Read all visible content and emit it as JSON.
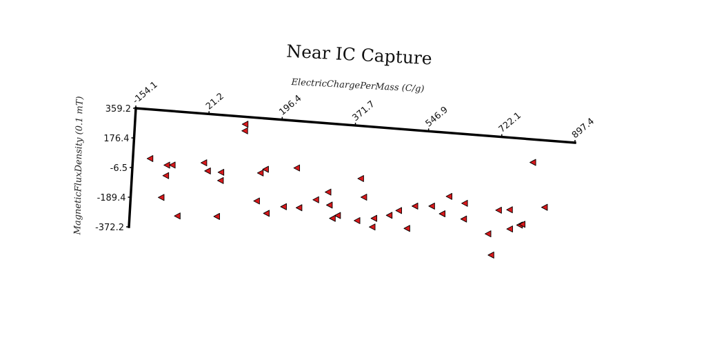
{
  "chart_data": {
    "type": "scatter",
    "title": "Near IC Capture",
    "xlabel": "ElectricChargePerMass (C/g)",
    "ylabel": "MagneticFluxDensity (0.1 mT)",
    "x_ticks": [
      "-154.1",
      "21.2",
      "196.4",
      "371.7",
      "546.9",
      "722.1",
      "897.4"
    ],
    "y_ticks": [
      "359.2",
      "176.4",
      "-6.5",
      "-189.4",
      "-372.2"
    ],
    "xlim": [
      -154.1,
      897.4
    ],
    "ylim": [
      -372.2,
      359.2
    ],
    "marker": "triangle-left",
    "marker_color": "#d7191c",
    "points": [
      {
        "x": -113,
        "y": 57
      },
      {
        "x": -72,
        "y": 25
      },
      {
        "x": -59,
        "y": 28
      },
      {
        "x": -73,
        "y": -40
      },
      {
        "x": -81,
        "y": -176
      },
      {
        "x": -40,
        "y": -282
      },
      {
        "x": 16,
        "y": 57
      },
      {
        "x": 26,
        "y": 9
      },
      {
        "x": 58,
        "y": 7
      },
      {
        "x": 58,
        "y": -44
      },
      {
        "x": 54,
        "y": -266
      },
      {
        "x": 109,
        "y": 314
      },
      {
        "x": 109,
        "y": 273
      },
      {
        "x": 164,
        "y": 47
      },
      {
        "x": 152,
        "y": 22
      },
      {
        "x": 147,
        "y": -152
      },
      {
        "x": 172,
        "y": -223
      },
      {
        "x": 212,
        "y": -174
      },
      {
        "x": 238,
        "y": 70
      },
      {
        "x": 249,
        "y": -173
      },
      {
        "x": 288,
        "y": -116
      },
      {
        "x": 321,
        "y": -142
      },
      {
        "x": 316,
        "y": -63
      },
      {
        "x": 342,
        "y": -202
      },
      {
        "x": 330,
        "y": -222
      },
      {
        "x": 392,
        "y": 36
      },
      {
        "x": 402,
        "y": -77
      },
      {
        "x": 389,
        "y": -224
      },
      {
        "x": 426,
        "y": -256
      },
      {
        "x": 429,
        "y": -202
      },
      {
        "x": 465,
        "y": -176
      },
      {
        "x": 487,
        "y": -142
      },
      {
        "x": 509,
        "y": -248
      },
      {
        "x": 525,
        "y": -107
      },
      {
        "x": 565,
        "y": -99
      },
      {
        "x": 605,
        "y": -31
      },
      {
        "x": 591,
        "y": -141
      },
      {
        "x": 643,
        "y": -66
      },
      {
        "x": 643,
        "y": -163
      },
      {
        "x": 703,
        "y": -242
      },
      {
        "x": 713,
        "y": -371
      },
      {
        "x": 725,
        "y": -92
      },
      {
        "x": 751,
        "y": -84
      },
      {
        "x": 754,
        "y": -202
      },
      {
        "x": 777,
        "y": -173
      },
      {
        "x": 783,
        "y": -167
      },
      {
        "x": 800,
        "y": 218
      },
      {
        "x": 834,
        "y": -52
      }
    ]
  }
}
